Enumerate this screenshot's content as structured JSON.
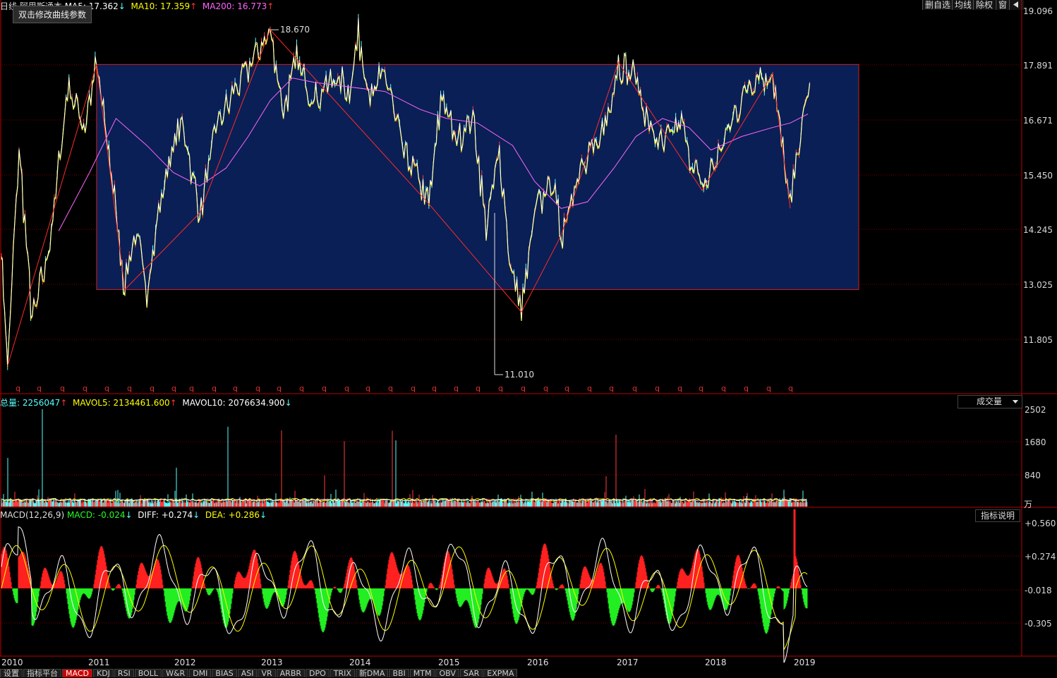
{
  "header": {
    "period": "日线",
    "title": "阿里斯通本",
    "ma5_label": "MA5:",
    "ma5_value": "17.362",
    "ma10_label": "MA10:",
    "ma10_value": "17.359",
    "ma200_label": "MA200:",
    "ma200_value": "16.773",
    "tooltip": "双击修改曲线参数"
  },
  "top_buttons": [
    "删自选",
    "均线",
    "除权",
    "窗"
  ],
  "arrows": {
    "up": "↑",
    "down": "↓"
  },
  "price_axis": [
    "19.096",
    "17.891",
    "16.671",
    "15.450",
    "14.245",
    "13.025",
    "11.805"
  ],
  "annotations": {
    "high": "18.670",
    "low": "11.010"
  },
  "q_marker": "q",
  "volume_panel": {
    "total_label": "总量:",
    "total_value": "2256047",
    "mavol5_label": "MAVOL5:",
    "mavol5_value": "2134461.600",
    "mavol10_label": "MAVOL10:",
    "mavol10_value": "2076634.900",
    "selector": "成交量",
    "selector_icon": "caret-down-icon",
    "axis": [
      "2502",
      "1680",
      "840"
    ],
    "unit": "万"
  },
  "macd_panel": {
    "params": "MACD(12,26,9)",
    "macd_label": "MACD:",
    "macd_value": "-0.024",
    "diff_label": "DIFF:",
    "diff_value": "+0.274",
    "dea_label": "DEA:",
    "dea_value": "+0.286",
    "explain_button": "指标说明",
    "axis": [
      "+0.560",
      "+0.274",
      "-0.018",
      "-0.305"
    ]
  },
  "years": [
    "2010",
    "2011",
    "2012",
    "2013",
    "2014",
    "2015",
    "2016",
    "2017",
    "2018",
    "2019"
  ],
  "tabs": [
    "设置",
    "指标平台",
    "MACD",
    "KDJ",
    "RSI",
    "BOLL",
    "W&R",
    "DMI",
    "BIAS",
    "ASI",
    "VR",
    "ARBR",
    "DPO",
    "TRIX",
    "新DMA",
    "BBI",
    "MTM",
    "OBV",
    "SAR",
    "EXPMA"
  ],
  "active_tab": "MACD",
  "colors": {
    "up": "#ff3b3b",
    "down": "#5ff",
    "ma5": "#ffffff",
    "ma10": "#ffff00",
    "ma200": "#ff66ff",
    "box_fill": "#0a1f55",
    "box_border": "#d02020",
    "grid": "#7a0000",
    "macd_up": "#ff2020",
    "macd_down": "#22ee22"
  },
  "chart_data": {
    "type": "line",
    "x_range": [
      "2010",
      "2019"
    ],
    "y_range": [
      11.01,
      19.096
    ],
    "price_path": [
      [
        2010.0,
        13.8
      ],
      [
        2010.07,
        11.2
      ],
      [
        2010.2,
        16.1
      ],
      [
        2010.35,
        12.2
      ],
      [
        2010.55,
        13.9
      ],
      [
        2010.75,
        17.4
      ],
      [
        2010.95,
        16.6
      ],
      [
        2011.08,
        17.9
      ],
      [
        2011.25,
        15.5
      ],
      [
        2011.4,
        12.9
      ],
      [
        2011.52,
        14.2
      ],
      [
        2011.65,
        12.95
      ],
      [
        2011.85,
        15.4
      ],
      [
        2012.05,
        16.7
      ],
      [
        2012.25,
        14.6
      ],
      [
        2012.45,
        16.6
      ],
      [
        2012.65,
        17.3
      ],
      [
        2012.85,
        18.0
      ],
      [
        2013.05,
        18.67
      ],
      [
        2013.2,
        16.9
      ],
      [
        2013.35,
        18.0
      ],
      [
        2013.55,
        17.1
      ],
      [
        2013.75,
        17.6
      ],
      [
        2013.95,
        17.4
      ],
      [
        2014.05,
        18.55
      ],
      [
        2014.2,
        17.1
      ],
      [
        2014.35,
        17.8
      ],
      [
        2014.55,
        16.0
      ],
      [
        2014.7,
        15.5
      ],
      [
        2014.85,
        14.8
      ],
      [
        2015.0,
        17.3
      ],
      [
        2015.15,
        16.2
      ],
      [
        2015.35,
        16.8
      ],
      [
        2015.5,
        14.3
      ],
      [
        2015.65,
        16.0
      ],
      [
        2015.78,
        13.4
      ],
      [
        2015.9,
        12.4
      ],
      [
        2016.05,
        14.6
      ],
      [
        2016.25,
        15.4
      ],
      [
        2016.35,
        14.1
      ],
      [
        2016.5,
        15.3
      ],
      [
        2016.7,
        15.9
      ],
      [
        2016.85,
        16.6
      ],
      [
        2017.0,
        17.95
      ],
      [
        2017.2,
        17.6
      ],
      [
        2017.35,
        16.5
      ],
      [
        2017.5,
        16.1
      ],
      [
        2017.7,
        16.6
      ],
      [
        2017.95,
        15.1
      ],
      [
        2018.15,
        16.0
      ],
      [
        2018.3,
        16.7
      ],
      [
        2018.5,
        17.6
      ],
      [
        2018.75,
        17.7
      ],
      [
        2018.85,
        16.2
      ],
      [
        2018.95,
        14.7
      ],
      [
        2019.05,
        16.3
      ],
      [
        2019.17,
        17.5
      ]
    ],
    "ma200_path": [
      [
        2010.65,
        14.2
      ],
      [
        2011.0,
        15.5
      ],
      [
        2011.3,
        16.7
      ],
      [
        2011.65,
        16.1
      ],
      [
        2011.95,
        15.5
      ],
      [
        2012.25,
        15.2
      ],
      [
        2012.55,
        15.6
      ],
      [
        2012.8,
        16.3
      ],
      [
        2013.05,
        17.1
      ],
      [
        2013.3,
        17.6
      ],
      [
        2013.55,
        17.5
      ],
      [
        2013.95,
        17.4
      ],
      [
        2014.35,
        17.3
      ],
      [
        2014.75,
        16.9
      ],
      [
        2015.05,
        16.7
      ],
      [
        2015.4,
        16.6
      ],
      [
        2015.8,
        16.1
      ],
      [
        2016.05,
        15.3
      ],
      [
        2016.35,
        14.7
      ],
      [
        2016.65,
        14.85
      ],
      [
        2016.95,
        15.6
      ],
      [
        2017.2,
        16.3
      ],
      [
        2017.5,
        16.7
      ],
      [
        2017.8,
        16.5
      ],
      [
        2018.05,
        16.0
      ],
      [
        2018.4,
        16.3
      ],
      [
        2018.75,
        16.5
      ],
      [
        2018.95,
        16.6
      ],
      [
        2019.15,
        16.8
      ]
    ],
    "zigzag": [
      [
        2010.07,
        11.2
      ],
      [
        2011.08,
        17.9
      ],
      [
        2011.4,
        12.9
      ],
      [
        2012.25,
        14.6
      ],
      [
        2013.05,
        18.67
      ],
      [
        2014.85,
        14.8
      ],
      [
        2015.9,
        12.4
      ],
      [
        2016.35,
        14.1
      ],
      [
        2017.0,
        17.95
      ],
      [
        2017.95,
        15.1
      ],
      [
        2018.75,
        17.7
      ],
      [
        2018.95,
        14.7
      ]
    ],
    "range_box": {
      "x": [
        2011.08,
        2019.75
      ],
      "y": [
        12.9,
        17.9
      ]
    },
    "volume_axis_range": [
      0,
      2502
    ],
    "macd_axis_range": [
      -0.59,
      0.59
    ]
  }
}
